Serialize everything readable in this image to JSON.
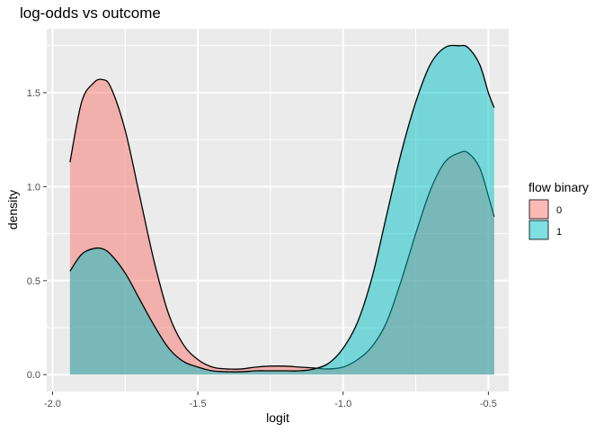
{
  "chart_data": {
    "type": "area",
    "title": "log-odds vs outcome",
    "xlabel": "logit",
    "ylabel": "density",
    "xlim": [
      -2.02,
      -0.43
    ],
    "ylim": [
      -0.09,
      1.84
    ],
    "x_ticks": [
      -2.0,
      -1.5,
      -1.0,
      -0.5
    ],
    "x_tick_labels": [
      "-2.0",
      "-1.5",
      "-1.0",
      "-0.5"
    ],
    "y_ticks": [
      0.0,
      0.5,
      1.0,
      1.5
    ],
    "y_tick_labels": [
      "0.0",
      "0.5",
      "1.0",
      "1.5"
    ],
    "grid": true,
    "legend": {
      "title": "flow binary",
      "position": "right"
    },
    "colors": {
      "panel": "#ebebeb",
      "grid": "#ffffff",
      "outline": "#000000"
    },
    "series": [
      {
        "name": "0",
        "color": "#F8766D",
        "fill_alpha": 0.5,
        "x": [
          -1.94,
          -1.9,
          -1.86,
          -1.83,
          -1.8,
          -1.75,
          -1.7,
          -1.65,
          -1.6,
          -1.55,
          -1.5,
          -1.45,
          -1.4,
          -1.35,
          -1.3,
          -1.25,
          -1.2,
          -1.15,
          -1.1,
          -1.05,
          -1.0,
          -0.95,
          -0.9,
          -0.85,
          -0.8,
          -0.75,
          -0.7,
          -0.65,
          -0.6,
          -0.57,
          -0.53,
          -0.5,
          -0.48
        ],
        "y": [
          1.13,
          1.45,
          1.55,
          1.57,
          1.53,
          1.3,
          0.95,
          0.6,
          0.32,
          0.16,
          0.08,
          0.04,
          0.03,
          0.03,
          0.04,
          0.045,
          0.045,
          0.04,
          0.035,
          0.03,
          0.04,
          0.08,
          0.15,
          0.28,
          0.5,
          0.75,
          0.98,
          1.13,
          1.18,
          1.18,
          1.1,
          0.95,
          0.84
        ]
      },
      {
        "name": "1",
        "color": "#00BFC4",
        "fill_alpha": 0.5,
        "x": [
          -1.94,
          -1.9,
          -1.86,
          -1.83,
          -1.8,
          -1.75,
          -1.7,
          -1.65,
          -1.6,
          -1.55,
          -1.5,
          -1.45,
          -1.4,
          -1.35,
          -1.3,
          -1.25,
          -1.2,
          -1.15,
          -1.1,
          -1.05,
          -1.0,
          -0.95,
          -0.9,
          -0.85,
          -0.8,
          -0.75,
          -0.7,
          -0.65,
          -0.6,
          -0.57,
          -0.53,
          -0.5,
          -0.48
        ],
        "y": [
          0.55,
          0.64,
          0.67,
          0.67,
          0.64,
          0.54,
          0.4,
          0.26,
          0.14,
          0.07,
          0.04,
          0.02,
          0.015,
          0.015,
          0.02,
          0.02,
          0.02,
          0.02,
          0.03,
          0.06,
          0.14,
          0.28,
          0.52,
          0.85,
          1.18,
          1.45,
          1.65,
          1.74,
          1.75,
          1.74,
          1.65,
          1.5,
          1.42
        ]
      }
    ]
  }
}
